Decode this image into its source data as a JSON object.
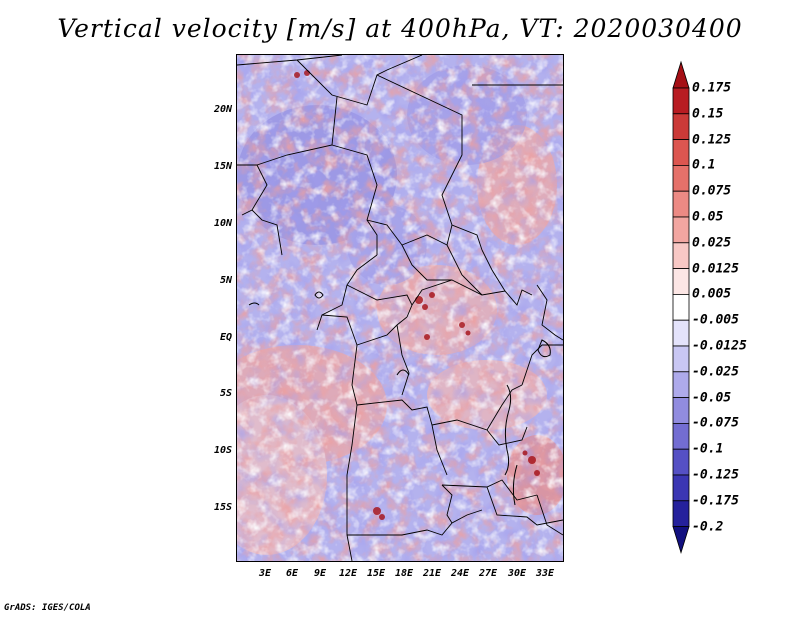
{
  "title": "Vertical velocity [m/s] at 400hPa, VT: 2020030400",
  "credit": "GrADS: IGES/COLA",
  "map": {
    "lat_labels": [
      "20N",
      "15N",
      "10N",
      "5N",
      "EQ",
      "5S",
      "10S",
      "15S"
    ],
    "lon_labels": [
      "3E",
      "6E",
      "9E",
      "12E",
      "15E",
      "18E",
      "21E",
      "24E",
      "27E",
      "30E",
      "33E"
    ]
  },
  "colorbar": {
    "labels": [
      "0.175",
      "0.15",
      "0.125",
      "0.1",
      "0.075",
      "0.05",
      "0.025",
      "0.0125",
      "0.005",
      "-0.005",
      "-0.0125",
      "-0.025",
      "-0.05",
      "-0.075",
      "-0.1",
      "-0.125",
      "-0.175",
      "-0.2"
    ],
    "colors": [
      "#a50f15",
      "#b81c22",
      "#cb3a38",
      "#dc5650",
      "#e5716a",
      "#ec8a84",
      "#f2a6a1",
      "#f8c8c5",
      "#fce6e5",
      "#ffffff",
      "#e4e3fb",
      "#c9c7f3",
      "#aeaaeb",
      "#918cdf",
      "#736dd2",
      "#5550c4",
      "#3b36b3",
      "#25219c",
      "#12107f"
    ]
  },
  "colors": {
    "border": "#000000"
  }
}
